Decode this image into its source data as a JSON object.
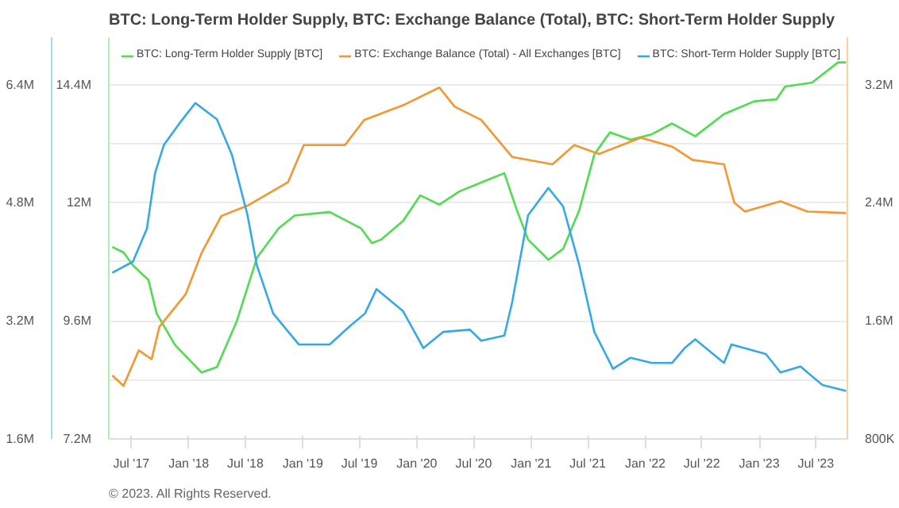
{
  "chart_data": {
    "type": "line",
    "title": "BTC: Long-Term Holder Supply, BTC: Exchange Balance (Total), BTC: Short-Term Holder Supply",
    "annotations": [
      "© 2023. All Rights Reserved."
    ],
    "legend": "top",
    "grid": "y",
    "line_style": "solid",
    "xlim": [
      "2017-04-20",
      "2023-10-10"
    ],
    "xticks": [
      {
        "value": "2017-07-01",
        "label": "Jul '17"
      },
      {
        "value": "2018-01-01",
        "label": "Jan '18"
      },
      {
        "value": "2018-07-01",
        "label": "Jul '18"
      },
      {
        "value": "2019-01-01",
        "label": "Jan '19"
      },
      {
        "value": "2019-07-01",
        "label": "Jul '19"
      },
      {
        "value": "2020-01-01",
        "label": "Jan '20"
      },
      {
        "value": "2020-07-01",
        "label": "Jul '20"
      },
      {
        "value": "2021-01-01",
        "label": "Jan '21"
      },
      {
        "value": "2021-07-01",
        "label": "Jul '21"
      },
      {
        "value": "2022-01-01",
        "label": "Jan '22"
      },
      {
        "value": "2022-07-01",
        "label": "Jul '22"
      },
      {
        "value": "2023-01-01",
        "label": "Jan '23"
      },
      {
        "value": "2023-07-01",
        "label": "Jul '23"
      }
    ],
    "ylim": [
      7200000,
      15360000
    ],
    "yticks": [
      {
        "value": 7200000,
        "label": "7.2M"
      },
      {
        "value": 8400000,
        "label": null
      },
      {
        "value": 9600000,
        "label": "9.6M"
      },
      {
        "value": 10800000,
        "label": null
      },
      {
        "value": 12000000,
        "label": "12M"
      },
      {
        "value": 13200000,
        "label": null
      },
      {
        "value": 14400000,
        "label": "14.4M"
      }
    ],
    "y2lim": [
      800000,
      3520000
    ],
    "y2ticks": [
      {
        "value": 800000,
        "label": "800K"
      },
      {
        "value": 1600000,
        "label": "1.6M"
      },
      {
        "value": 2400000,
        "label": "2.4M"
      },
      {
        "value": 3200000,
        "label": "3.2M"
      }
    ],
    "y3lim": [
      1600000,
      7040000
    ],
    "y3ticks": [
      {
        "value": 1600000,
        "label": "1.6M"
      },
      {
        "value": 3200000,
        "label": "3.2M"
      },
      {
        "value": 4800000,
        "label": "4.8M"
      },
      {
        "value": 6400000,
        "label": "6.4M"
      }
    ],
    "series": [
      {
        "name": "BTC: Long-Term Holder Supply [BTC]",
        "color": "#4fdc4f",
        "axis": "y",
        "x": [
          "2017-05-01",
          "2017-06-06",
          "2017-07-06",
          "2017-08-25",
          "2017-09-20",
          "2017-11-18",
          "2018-02-11",
          "2018-04-01",
          "2018-06-04",
          "2018-08-07",
          "2018-10-16",
          "2018-12-06",
          "2019-03-28",
          "2019-07-06",
          "2019-08-10",
          "2019-09-09",
          "2019-11-18",
          "2020-01-12",
          "2020-03-13",
          "2020-05-16",
          "2020-08-09",
          "2020-10-07",
          "2020-11-16",
          "2020-12-22",
          "2021-02-25",
          "2021-04-13",
          "2021-06-04",
          "2021-07-22",
          "2021-09-10",
          "2021-11-15",
          "2022-01-22",
          "2022-03-28",
          "2022-06-10",
          "2022-09-10",
          "2022-12-16",
          "2023-02-25",
          "2023-03-25",
          "2023-06-19",
          "2023-09-10",
          "2023-10-06"
        ],
        "values": [
          11100000,
          10990000,
          10730000,
          10430000,
          9750000,
          9110000,
          8550000,
          8660000,
          9600000,
          10880000,
          11480000,
          11740000,
          11810000,
          11480000,
          11180000,
          11250000,
          11630000,
          12150000,
          11960000,
          12230000,
          12450000,
          12600000,
          11850000,
          11250000,
          10840000,
          11060000,
          11850000,
          12980000,
          13430000,
          13280000,
          13390000,
          13610000,
          13350000,
          13800000,
          14060000,
          14100000,
          14360000,
          14440000,
          14850000,
          14850000
        ]
      },
      {
        "name": "BTC: Exchange Balance (Total) - All Exchanges [BTC]",
        "color": "#f5962f",
        "axis": "y2",
        "x": [
          "2017-05-01",
          "2017-06-06",
          "2017-07-25",
          "2017-09-04",
          "2017-09-29",
          "2017-12-22",
          "2018-02-11",
          "2018-04-15",
          "2018-07-08",
          "2018-09-28",
          "2018-11-15",
          "2019-01-04",
          "2019-05-16",
          "2019-07-16",
          "2019-11-18",
          "2020-03-13",
          "2020-05-01",
          "2020-07-25",
          "2020-11-01",
          "2021-03-10",
          "2021-05-19",
          "2021-08-06",
          "2021-12-18",
          "2022-03-28",
          "2022-06-01",
          "2022-09-10",
          "2022-10-13",
          "2022-11-16",
          "2023-03-10",
          "2023-06-04",
          "2023-10-06"
        ],
        "values": [
          1230000,
          1160000,
          1400000,
          1340000,
          1560000,
          1780000,
          2060000,
          2310000,
          2380000,
          2480000,
          2540000,
          2790000,
          2790000,
          2960000,
          3060000,
          3180000,
          3050000,
          2960000,
          2710000,
          2660000,
          2790000,
          2730000,
          2840000,
          2780000,
          2690000,
          2660000,
          2400000,
          2340000,
          2410000,
          2340000,
          2330000
        ]
      },
      {
        "name": "BTC: Short-Term Holder Supply [BTC]",
        "color": "#35a9e6",
        "axis": "y3",
        "x": [
          "2017-05-01",
          "2017-07-06",
          "2017-08-20",
          "2017-09-15",
          "2017-10-13",
          "2017-12-03",
          "2018-01-22",
          "2018-04-01",
          "2018-05-19",
          "2018-07-08",
          "2018-08-07",
          "2018-09-28",
          "2018-12-19",
          "2019-03-28",
          "2019-06-01",
          "2019-07-19",
          "2019-08-25",
          "2019-11-18",
          "2020-01-22",
          "2020-03-25",
          "2020-06-19",
          "2020-07-25",
          "2020-10-07",
          "2020-11-01",
          "2020-12-22",
          "2021-02-25",
          "2021-04-13",
          "2021-06-04",
          "2021-07-22",
          "2021-09-20",
          "2021-11-15",
          "2022-01-22",
          "2022-03-28",
          "2022-05-07",
          "2022-06-10",
          "2022-09-10",
          "2022-10-04",
          "2023-01-22",
          "2023-03-10",
          "2023-05-13",
          "2023-07-22",
          "2023-10-06"
        ],
        "values": [
          3850000,
          4000000,
          4450000,
          5200000,
          5580000,
          5880000,
          6150000,
          5930000,
          5450000,
          4630000,
          3950000,
          3300000,
          2880000,
          2880000,
          3130000,
          3300000,
          3630000,
          3330000,
          2830000,
          3050000,
          3080000,
          2930000,
          3000000,
          3450000,
          4630000,
          5000000,
          4750000,
          3950000,
          3050000,
          2550000,
          2700000,
          2630000,
          2630000,
          2830000,
          2950000,
          2630000,
          2880000,
          2750000,
          2500000,
          2580000,
          2330000,
          2250000
        ]
      }
    ]
  }
}
